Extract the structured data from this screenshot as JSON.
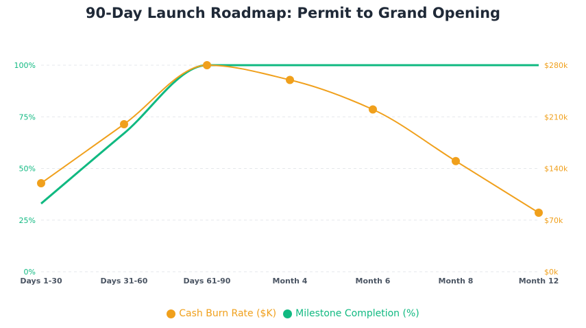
{
  "chart_data": {
    "type": "line",
    "title": "90-Day Launch Roadmap: Permit to Grand Opening",
    "categories": [
      "Days 1-30",
      "Days 31-60",
      "Days 61-90",
      "Month 4",
      "Month 6",
      "Month 8",
      "Month 12"
    ],
    "series": [
      {
        "name": "Cash Burn Rate ($K)",
        "axis": "right",
        "color": "#f0a01c",
        "values": [
          120,
          200,
          280,
          260,
          220,
          150,
          80
        ],
        "markers": true
      },
      {
        "name": "Milestone Completion (%)",
        "axis": "left",
        "color": "#10b981",
        "values": [
          33,
          67,
          100,
          100,
          100,
          100,
          100
        ],
        "markers": false
      }
    ],
    "y_left": {
      "range": [
        0,
        100
      ],
      "ticks": [
        "0%",
        "25%",
        "50%",
        "75%",
        "100%"
      ],
      "color": "#10b981"
    },
    "y_right": {
      "range": [
        0,
        280
      ],
      "ticks": [
        "$0k",
        "$70k",
        "$140k",
        "$210k",
        "$280k"
      ],
      "color": "#f0a01c"
    },
    "grid": true,
    "legend": "bottom-center"
  }
}
